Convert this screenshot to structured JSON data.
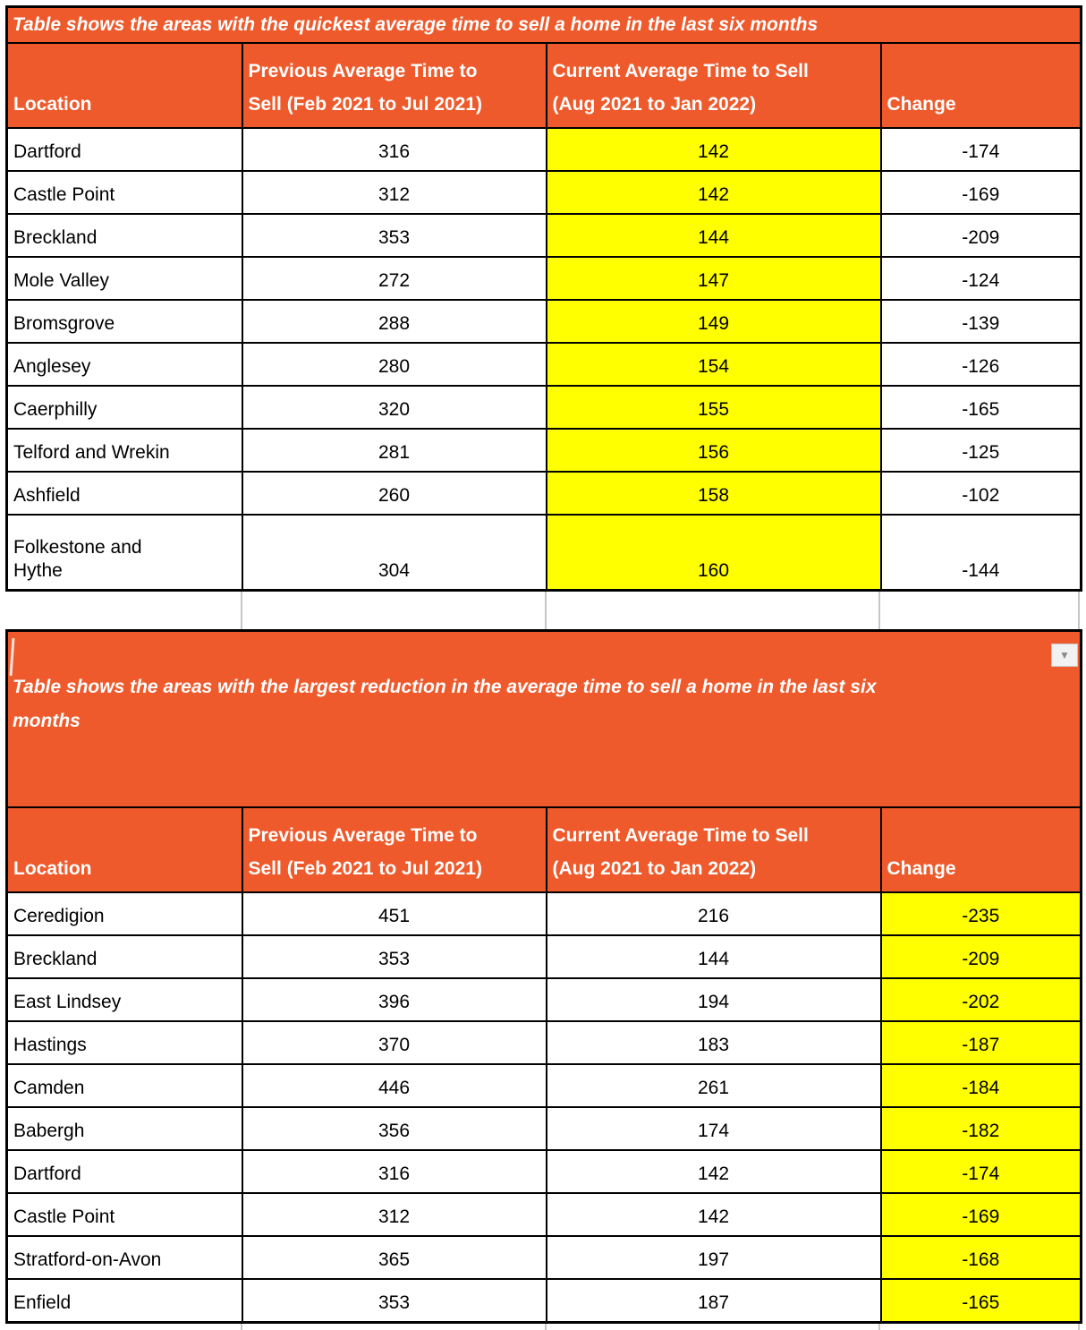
{
  "colors": {
    "header_bg": "#EE5A2C",
    "highlight_yellow": "#FFFF00",
    "gridline_gray": "#C6C6C6",
    "border_black": "#000000",
    "title_text": "#FFFFFF"
  },
  "icons": {
    "dropdown_arrow": "▼"
  },
  "table1": {
    "title": "Table shows the areas with the quickest average time to sell a home in the last six months",
    "columns": {
      "location": "Location",
      "previous": "Previous Average Time to\nSell (Feb 2021 to Jul 2021)",
      "current": "Current Average Time to Sell\n(Aug 2021 to Jan 2022)",
      "change": "Change"
    },
    "rows": [
      {
        "location": "Dartford",
        "previous": "316",
        "current": "142",
        "change": "-174"
      },
      {
        "location": "Castle Point",
        "previous": "312",
        "current": "142",
        "change": "-169"
      },
      {
        "location": "Breckland",
        "previous": "353",
        "current": "144",
        "change": "-209"
      },
      {
        "location": "Mole Valley",
        "previous": "272",
        "current": "147",
        "change": "-124"
      },
      {
        "location": "Bromsgrove",
        "previous": "288",
        "current": "149",
        "change": "-139"
      },
      {
        "location": "Anglesey",
        "previous": "280",
        "current": "154",
        "change": "-126"
      },
      {
        "location": "Caerphilly",
        "previous": "320",
        "current": "155",
        "change": "-165"
      },
      {
        "location": "Telford and Wrekin",
        "previous": "281",
        "current": "156",
        "change": "-125"
      },
      {
        "location": "Ashfield",
        "previous": "260",
        "current": "158",
        "change": "-102"
      },
      {
        "location": "Folkestone and\nHythe",
        "previous": "304",
        "current": "160",
        "change": "-144"
      }
    ]
  },
  "table2": {
    "title": "Table shows the areas with the largest reduction in the average time to sell a home in the last six\nmonths",
    "columns": {
      "location": "Location",
      "previous": "Previous Average Time to\nSell (Feb 2021 to Jul 2021)",
      "current": "Current Average Time to Sell\n(Aug 2021 to Jan 2022)",
      "change": "Change"
    },
    "rows": [
      {
        "location": "Ceredigion",
        "previous": "451",
        "current": "216",
        "change": "-235"
      },
      {
        "location": "Breckland",
        "previous": "353",
        "current": "144",
        "change": "-209"
      },
      {
        "location": "East Lindsey",
        "previous": "396",
        "current": "194",
        "change": "-202"
      },
      {
        "location": "Hastings",
        "previous": "370",
        "current": "183",
        "change": "-187"
      },
      {
        "location": "Camden",
        "previous": "446",
        "current": "261",
        "change": "-184"
      },
      {
        "location": "Babergh",
        "previous": "356",
        "current": "174",
        "change": "-182"
      },
      {
        "location": "Dartford",
        "previous": "316",
        "current": "142",
        "change": "-174"
      },
      {
        "location": "Castle Point",
        "previous": "312",
        "current": "142",
        "change": "-169"
      },
      {
        "location": "Stratford-on-Avon",
        "previous": "365",
        "current": "197",
        "change": "-168"
      },
      {
        "location": "Enfield",
        "previous": "353",
        "current": "187",
        "change": "-165"
      }
    ]
  }
}
